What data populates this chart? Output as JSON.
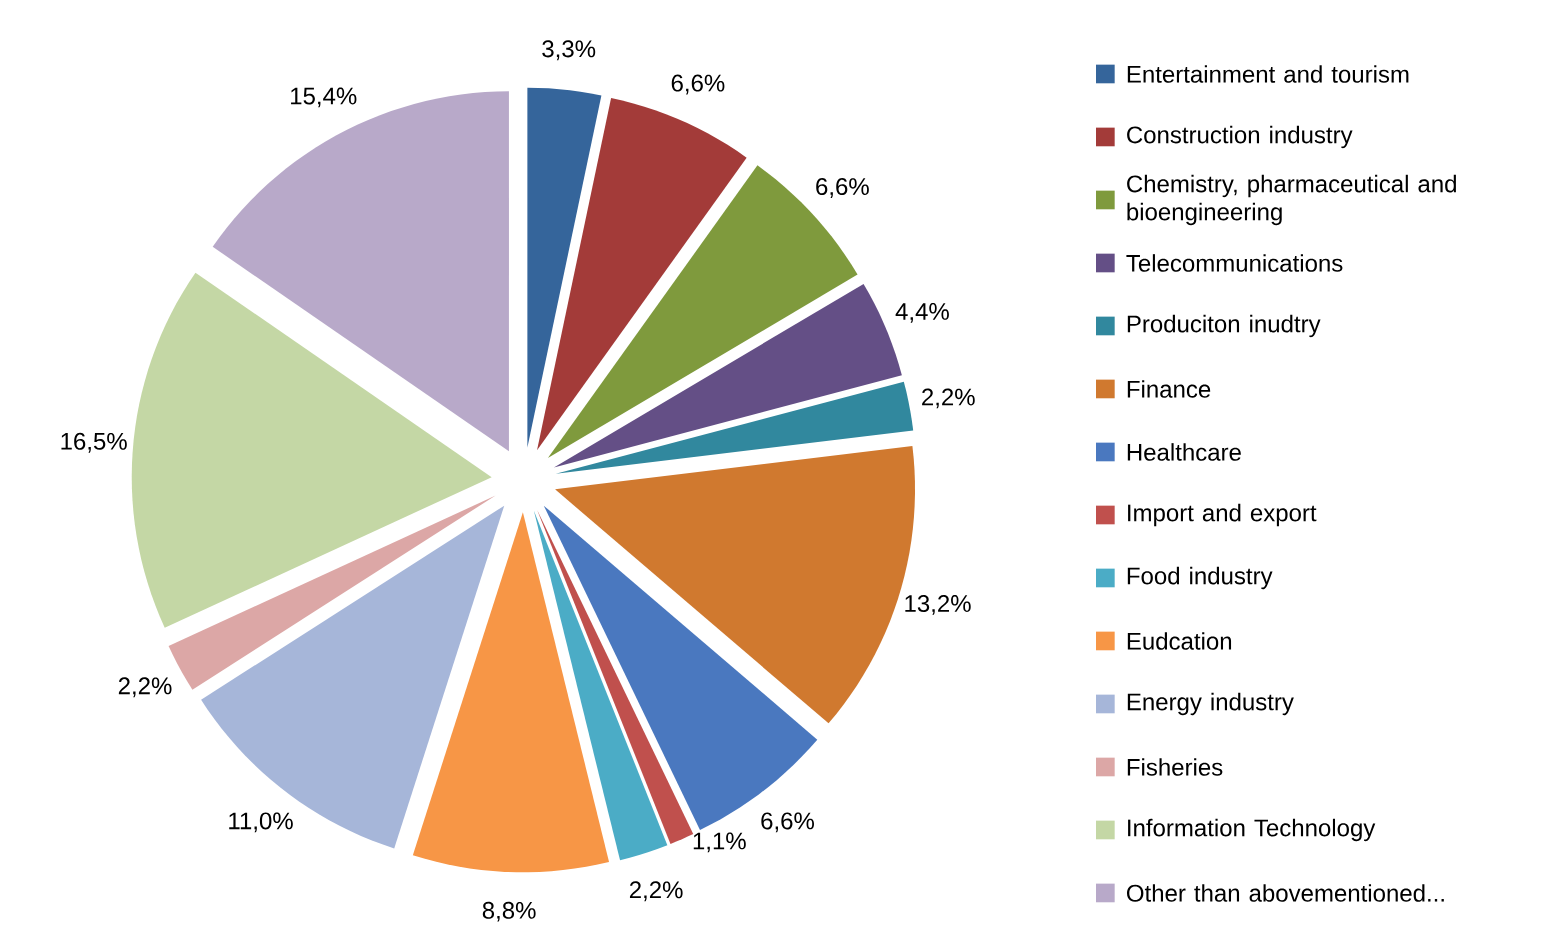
{
  "chart_data": {
    "type": "pie",
    "categories": [
      "Entertainment and tourism",
      "Construction industry",
      "Chemistry, pharmaceutical and bioengineering",
      "Telecommunications",
      "Produciton inudtry",
      "Finance",
      "Healthcare",
      "Import and export",
      "Food industry",
      "Eudcation",
      "Energy industry",
      "Fisheries",
      "Information Technology",
      "Other than abovementioned..."
    ],
    "values": [
      3.3,
      6.6,
      6.6,
      4.4,
      2.2,
      13.2,
      6.6,
      1.1,
      2.2,
      8.8,
      11.0,
      2.2,
      16.5,
      15.4
    ],
    "value_labels": [
      "3,3%",
      "6,6%",
      "6,6%",
      "4,4%",
      "2,2%",
      "13,2%",
      "6,6%",
      "1,1%",
      "2,2%",
      "8,8%",
      "11,0%",
      "2,2%",
      "16,5%",
      "15,4%"
    ],
    "colors": [
      "#35659b",
      "#a33b39",
      "#7f9a3d",
      "#644f86",
      "#31889e",
      "#d0792f",
      "#4a78bf",
      "#c0504d",
      "#4bacc6",
      "#f79646",
      "#a6b6d9",
      "#dca7a6",
      "#c4d7a5",
      "#b8a9c9"
    ],
    "legend": "right"
  }
}
